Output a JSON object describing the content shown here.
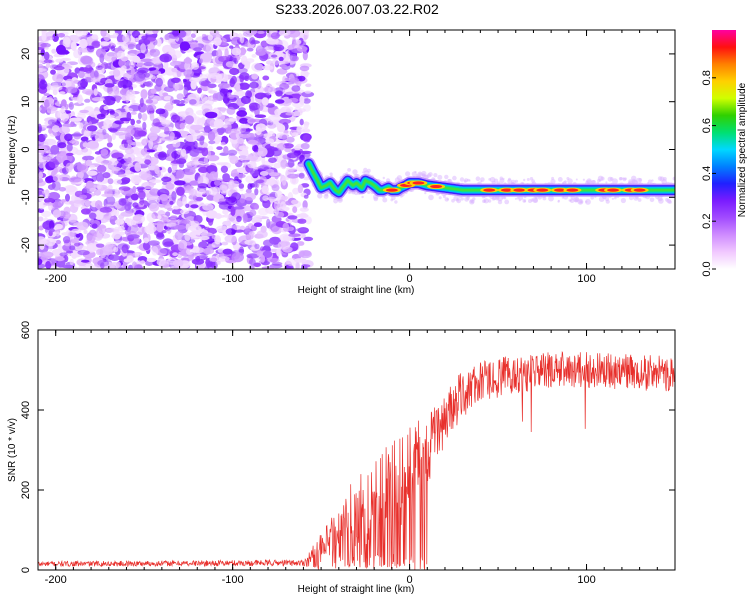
{
  "title": "S233.2026.007.03.22.R02",
  "colors": {
    "snr_line": "#e8302c",
    "frame": "#000000",
    "colorbar_stops": [
      "#ffffff",
      "#f1c8ff",
      "#cf8cff",
      "#a24cff",
      "#7a1cff",
      "#2020ff",
      "#0080ff",
      "#00d8ff",
      "#00e070",
      "#30d000",
      "#d0ff00",
      "#ffd000",
      "#ff8000",
      "#ff1010",
      "#ff00a0"
    ]
  },
  "chart_data": [
    {
      "type": "heatmap",
      "name": "spectrogram",
      "title": "S233.2026.007.03.22.R02",
      "xlabel": "Height of straight line (km)",
      "ylabel": "Frequency (Hz)",
      "xlim": [
        -210,
        150
      ],
      "ylim": [
        -25,
        25
      ],
      "xticks": [
        -200,
        -100,
        0,
        100
      ],
      "yticks": [
        -20,
        -10,
        0,
        10,
        20
      ],
      "noise_region_x": [
        -210,
        -57
      ],
      "signal_track": {
        "x": [
          -57,
          -55,
          -52,
          -50,
          -47,
          -45,
          -42,
          -40,
          -37,
          -35,
          -32,
          -30,
          -27,
          -25,
          -22,
          -20,
          -17,
          -15,
          -12,
          -10,
          -7,
          -5,
          -2,
          0,
          5,
          10,
          20,
          30,
          40,
          50,
          60,
          70,
          80,
          90,
          100,
          110,
          120,
          130,
          140,
          150
        ],
        "frequency_hz": [
          -3,
          -4.5,
          -6.5,
          -8,
          -7.5,
          -7,
          -8.5,
          -9,
          -7.5,
          -6.5,
          -7.5,
          -7,
          -8,
          -6.5,
          -7,
          -7.5,
          -8.5,
          -8.5,
          -8,
          -8.5,
          -8.5,
          -8,
          -7.5,
          -7,
          -7,
          -7.5,
          -8,
          -8.5,
          -8.5,
          -8.5,
          -8.5,
          -8.5,
          -8.5,
          -8.5,
          -8.5,
          -8.5,
          -8.5,
          -8.5,
          -8.5,
          -8.5
        ]
      },
      "colorbar": {
        "label": "Normalized spectral amplitude",
        "range": [
          0,
          1
        ],
        "ticks": [
          "0.0",
          "0.2",
          "0.4",
          "0.6",
          "0.8"
        ]
      }
    },
    {
      "type": "line",
      "name": "snr",
      "xlabel": "Height of straight line (km)",
      "ylabel": "SNR (10 * v/v)",
      "xlim": [
        -210,
        150
      ],
      "ylim": [
        0,
        600
      ],
      "xticks": [
        -200,
        -100,
        0,
        100
      ],
      "yticks": [
        0,
        200,
        400,
        600
      ],
      "series": [
        {
          "name": "SNR",
          "x_range": [
            -210,
            150
          ],
          "profile": {
            "x": [
              -210,
              -60,
              -45,
              -35,
              -25,
              -15,
              -5,
              0,
              10,
              20,
              30,
              40,
              60,
              80,
              100,
              150
            ],
            "mean": [
              15,
              18,
              60,
              100,
              140,
              170,
              200,
              260,
              300,
              380,
              440,
              470,
              490,
              500,
              500,
              490
            ],
            "spread": [
              8,
              10,
              80,
              120,
              140,
              150,
              160,
              140,
              90,
              70,
              60,
              50,
              50,
              45,
              45,
              45
            ]
          }
        }
      ]
    }
  ]
}
